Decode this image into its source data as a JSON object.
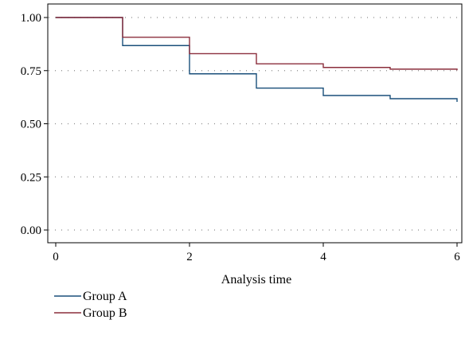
{
  "chart_data": {
    "type": "line",
    "step": true,
    "title": "",
    "xlabel": "Analysis time",
    "ylabel": "",
    "xlim": [
      0,
      6
    ],
    "ylim": [
      0,
      1
    ],
    "xticks": [
      0,
      2,
      4,
      6
    ],
    "xtick_labels": [
      "0",
      "2",
      "4",
      "6"
    ],
    "yticks": [
      0,
      0.25,
      0.5,
      0.75,
      1
    ],
    "ytick_labels": [
      "0.00",
      "0.25",
      "0.50",
      "0.75",
      "1.00"
    ],
    "grid": "horizontal dotted",
    "legend_position": "bottom-left",
    "series": [
      {
        "name": "Group A",
        "color": "#1a4f7a",
        "x": [
          0,
          1,
          2,
          3,
          4,
          5,
          6
        ],
        "y": [
          1.0,
          0.868,
          0.735,
          0.668,
          0.633,
          0.618,
          0.603
        ]
      },
      {
        "name": "Group B",
        "color": "#8b2e3c",
        "x": [
          0,
          1,
          2,
          3,
          4,
          5,
          6
        ],
        "y": [
          1.0,
          0.907,
          0.83,
          0.782,
          0.765,
          0.757,
          0.752
        ]
      }
    ]
  }
}
